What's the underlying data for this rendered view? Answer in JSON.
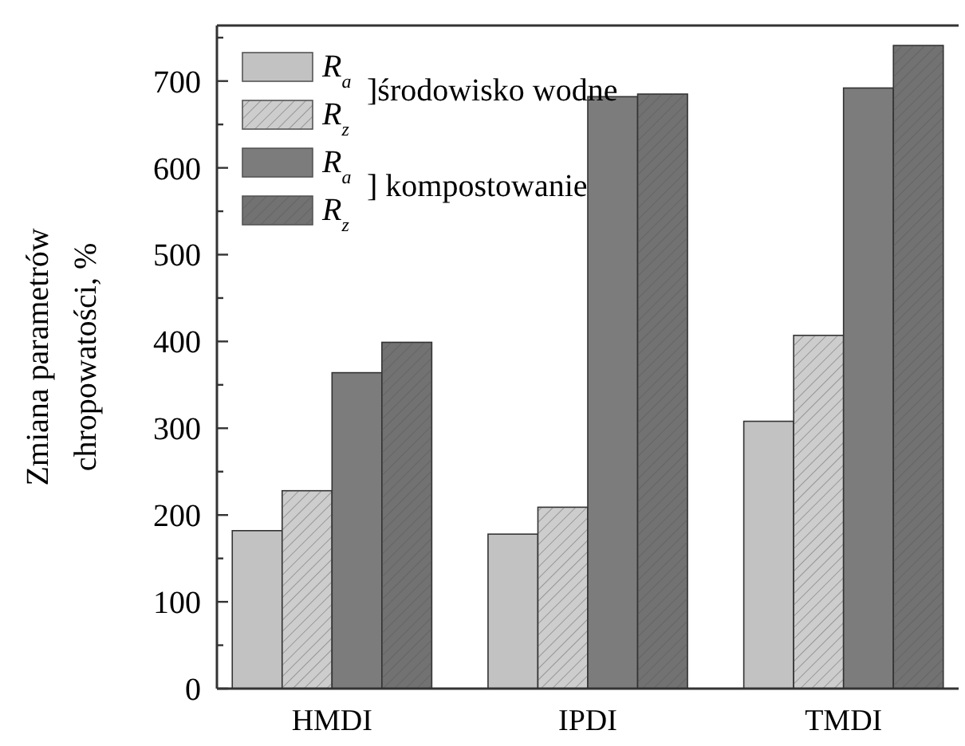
{
  "chart_data": {
    "type": "bar",
    "ylabel": "Zmiana parametrów\nchropowatości, %",
    "categories": [
      "HMDI",
      "IPDI",
      "TMDI"
    ],
    "series": [
      {
        "name": "R$_{a}$",
        "color": "#c2c2c2",
        "values": [
          182,
          178,
          308
        ]
      },
      {
        "name": "R$_{z}$",
        "color": "#cdcdcd",
        "values": [
          228,
          209,
          407
        ]
      },
      {
        "name": "R$_{a}$",
        "color": "#7c7c7c",
        "values": [
          364,
          682,
          692
        ]
      },
      {
        "name": "R$_{z}$",
        "color": "#727272",
        "values": [
          399,
          685,
          741
        ]
      }
    ],
    "annotations": [
      "]środowisko wodne",
      "] kompostowanie"
    ],
    "ylim": [
      0,
      764
    ],
    "yticks": [
      0,
      {
        "value": 50,
        "label": null
      },
      100,
      {
        "value": 150,
        "label": null
      },
      200,
      {
        "value": 250,
        "label": null
      },
      300,
      {
        "value": 350,
        "label": null
      },
      400,
      {
        "value": 450,
        "label": null
      },
      500,
      {
        "value": 550,
        "label": null
      },
      600,
      {
        "value": 650,
        "label": null
      },
      700,
      {
        "value": 750,
        "label": null
      }
    ],
    "legend": "top left",
    "grid": false
  }
}
